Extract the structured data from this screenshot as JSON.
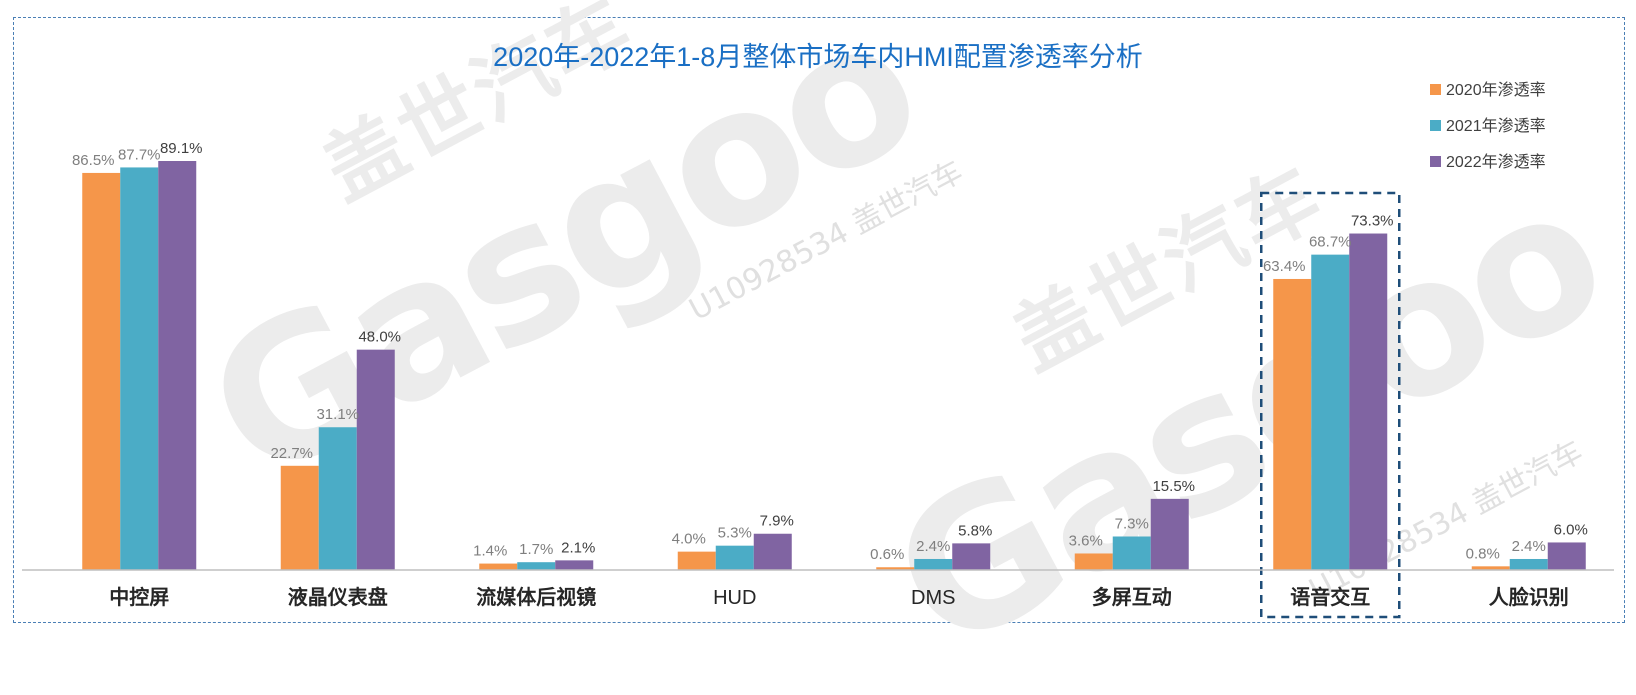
{
  "chart_data": {
    "type": "bar",
    "title": "2020年-2022年1-8月整体市场车内HMI配置渗透率分析",
    "categories": [
      "中控屏",
      "液晶仪表盘",
      "流媒体后视镜",
      "HUD",
      "DMS",
      "多屏互动",
      "语音交互",
      "人脸识别"
    ],
    "series": [
      {
        "name": "2020年渗透率",
        "color": "#f5964a",
        "values": [
          86.5,
          22.7,
          1.4,
          4.0,
          0.6,
          3.6,
          63.4,
          0.8
        ],
        "labels": [
          "86.5%",
          "22.7%",
          "1.4%",
          "4.0%",
          "0.6%",
          "3.6%",
          "63.4%",
          "0.8%"
        ]
      },
      {
        "name": "2021年渗透率",
        "color": "#4bacc6",
        "values": [
          87.7,
          31.1,
          1.7,
          5.3,
          2.4,
          7.3,
          68.7,
          2.4
        ],
        "labels": [
          "87.7%",
          "31.1%",
          "1.7%",
          "5.3%",
          "2.4%",
          "7.3%",
          "68.7%",
          "2.4%"
        ]
      },
      {
        "name": "2022年渗透率",
        "color": "#8064a2",
        "values": [
          89.1,
          48.0,
          2.1,
          7.9,
          5.8,
          15.5,
          73.3,
          6.0
        ],
        "labels": [
          "89.1%",
          "48.0%",
          "2.1%",
          "7.9%",
          "5.8%",
          "15.5%",
          "73.3%",
          "6.0%"
        ]
      }
    ],
    "ylim": [
      0,
      100
    ],
    "xlabel": "",
    "ylabel": "",
    "grid": false,
    "legend_position": "top-right",
    "highlighted_category": "语音交互",
    "title_color": "#1a6fc4",
    "highlight_color": "#1f4e79"
  },
  "watermark": {
    "logo_text": "Gasgoo",
    "brand_cn": "盖世汽车",
    "id_text": "U10928534 盖世汽车"
  }
}
